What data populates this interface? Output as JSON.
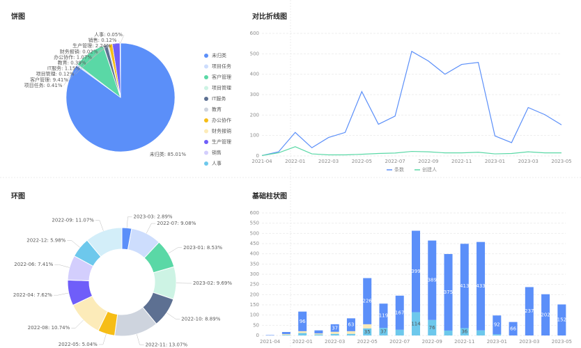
{
  "charts": [
    {
      "type": "pie",
      "title": "饼图",
      "categories": [
        "未归类",
        "项目任务",
        "客户管理",
        "项目管理",
        "IT服务",
        "教育",
        "办公协作",
        "财务报销",
        "生产管理",
        "销售",
        "人事"
      ],
      "values": [
        85.01,
        0.41,
        9.41,
        0.12,
        1.15,
        0.39,
        1.07,
        0.02,
        2.24,
        0.12,
        0.05
      ],
      "value_labels": [
        "未归类: 85.01%",
        "项目任务: 0.41%",
        "客户管理: 9.41%",
        "项目管理: 0.12%",
        "IT服务: 1.15%",
        "教育: 0.39%",
        "办公协作: 1.07%",
        "财务报销: 0.02%",
        "生产管理: 2.24%",
        "销售: 0.12%",
        "人事: 0.05%"
      ],
      "colors": [
        "#5b8ff9",
        "#cdddfd",
        "#5ad8a6",
        "#cdf3e4",
        "#5d7092",
        "#ced4de",
        "#f6bd16",
        "#fcebb9",
        "#6f5ef9",
        "#d3cefd",
        "#6dc8ec"
      ],
      "legend": "right"
    },
    {
      "type": "line",
      "title": "对比折线图",
      "categories": [
        "2021-04",
        null,
        "2022-01",
        null,
        "2022-03",
        null,
        "2022-05",
        null,
        "2022-07",
        null,
        "2022-09",
        null,
        "2022-11",
        null,
        "2023-01",
        null,
        "2023-03",
        null,
        "2023-05"
      ],
      "series": [
        {
          "name": "条数",
          "color": "#5b8ff9",
          "values": [
            2,
            20,
            115,
            40,
            90,
            115,
            315,
            155,
            195,
            512,
            465,
            400,
            448,
            458,
            98,
            65,
            237,
            202,
            152
          ]
        },
        {
          "name": "创建人",
          "color": "#5ad8a6",
          "values": [
            2,
            15,
            45,
            10,
            5,
            5,
            8,
            12,
            14,
            22,
            20,
            15,
            15,
            18,
            10,
            12,
            20,
            15,
            15
          ]
        }
      ],
      "ylim": [
        0,
        600
      ],
      "yticks": [
        0,
        100,
        200,
        300,
        400,
        500,
        600
      ],
      "grid": true,
      "legend": "bottom"
    },
    {
      "type": "donut",
      "title": "环图",
      "categories": [
        "2023-03",
        "2022-07",
        "2023-01",
        "2023-02",
        "2022-10",
        "2022-11",
        "2022-05",
        "2022-08",
        "2022-04",
        "2022-06",
        "2022-12",
        "2022-09"
      ],
      "values": [
        2.89,
        9.08,
        8.53,
        9.69,
        8.89,
        13.07,
        5.04,
        10.74,
        7.62,
        7.41,
        5.98,
        11.07
      ],
      "value_labels": [
        "2023-03: 2.89%",
        "2022-07: 9.08%",
        "2023-01: 8.53%",
        "2023-02: 9.69%",
        "2022-10: 8.89%",
        "2022-11: 13.07%",
        "2022-05: 5.04%",
        "2022-08: 10.74%",
        "2022-04: 7.62%",
        "2022-06: 7.41%",
        "2022-12: 5.98%",
        "2022-09: 11.07%"
      ],
      "colors": [
        "#5b8ff9",
        "#cdddfd",
        "#5ad8a6",
        "#cdf3e4",
        "#5d7092",
        "#ced4de",
        "#f6bd16",
        "#fcebb9",
        "#6f5ef9",
        "#d3cefd",
        "#6dc8ec",
        "#d3eef9"
      ]
    },
    {
      "type": "stacked-bar",
      "title": "基础柱状图",
      "categories": [
        "2021-04",
        null,
        "2022-01",
        null,
        "2022-03",
        null,
        "2022-05",
        null,
        "2022-07",
        null,
        "2022-09",
        null,
        "2022-11",
        null,
        "2023-01",
        null,
        "2023-03",
        null,
        "2023-05"
      ],
      "series": [
        {
          "color": "#6dc8ec",
          "values": [
            0,
            3,
            12,
            5,
            8,
            8,
            35,
            37,
            28,
            114,
            76,
            24,
            36,
            25,
            6,
            0,
            0,
            0,
            0
          ]
        },
        {
          "color": "#fcebb9",
          "values": [
            0,
            4,
            9,
            5,
            10,
            13,
            20,
            0,
            0,
            0,
            0,
            0,
            0,
            0,
            0,
            0,
            0,
            0,
            0
          ]
        },
        {
          "color": "#5b8ff9",
          "values": [
            2,
            10,
            96,
            15,
            37,
            63,
            226,
            119,
            167,
            399,
            389,
            375,
            413,
            433,
            92,
            66,
            237,
            202,
            152
          ]
        }
      ],
      "ylim": [
        0,
        600
      ],
      "yticks": [
        0,
        50,
        100,
        150,
        200,
        250,
        300,
        350,
        400,
        450,
        500,
        550,
        600
      ],
      "grid": true
    }
  ]
}
